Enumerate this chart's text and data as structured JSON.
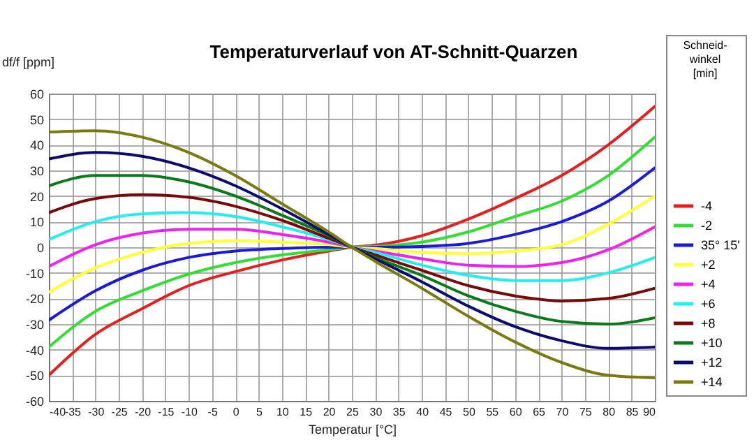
{
  "chart_data": {
    "type": "line",
    "title": "Temperaturverlauf von AT-Schnitt-Quarzen",
    "xlabel": "Temperatur [°C]",
    "ylabel": "df/f [ppm]",
    "legend_title": "Schneid-\nwinkel\n[min]",
    "x": [
      -40,
      -30,
      -20,
      -10,
      0,
      10,
      20,
      25,
      30,
      40,
      50,
      60,
      70,
      80,
      90
    ],
    "xlim": [
      -40,
      90
    ],
    "xticks": [
      -40,
      -35,
      -30,
      -25,
      -20,
      -15,
      -10,
      -5,
      0,
      5,
      10,
      15,
      20,
      25,
      30,
      35,
      40,
      45,
      50,
      55,
      60,
      65,
      70,
      75,
      80,
      85,
      90
    ],
    "ylim": [
      -60,
      60
    ],
    "yticks": [
      -60,
      -50,
      -40,
      -30,
      -20,
      -10,
      0,
      10,
      20,
      30,
      40,
      50,
      60
    ],
    "grid": true,
    "legend": "right",
    "marker": "none",
    "line_style": "solid",
    "series": [
      {
        "name": "-4",
        "color": "#e31f1f",
        "values": [
          -50,
          -34,
          -24,
          -15,
          -9.5,
          -5,
          -1.5,
          0,
          0.8,
          4.5,
          11,
          19,
          28,
          40,
          55
        ]
      },
      {
        "name": "-2",
        "color": "#33dd33",
        "values": [
          -39,
          -25,
          -17,
          -10.5,
          -6,
          -3,
          -1,
          0,
          0.3,
          2,
          6,
          12,
          18,
          28,
          43
        ]
      },
      {
        "name": "35° 15'",
        "color": "#1a1adb",
        "values": [
          -28.5,
          -17,
          -9,
          -4,
          -1.5,
          -0.5,
          0,
          0,
          0,
          0.3,
          1.5,
          5,
          10,
          18,
          31
        ]
      },
      {
        "name": "+2",
        "color": "#ffff33",
        "values": [
          -17.5,
          -8,
          -2,
          1.5,
          2.5,
          2,
          1,
          0,
          -0.5,
          -2,
          -2.5,
          -1.5,
          1,
          9,
          20
        ]
      },
      {
        "name": "+4",
        "color": "#ee22ee",
        "values": [
          -7.5,
          1,
          5.5,
          7,
          7,
          5,
          2,
          0,
          -1.5,
          -4.5,
          -7,
          -7.5,
          -6,
          -1,
          8
        ]
      },
      {
        "name": "+6",
        "color": "#22eeee",
        "values": [
          3,
          10,
          13,
          13.5,
          12,
          8,
          3,
          0,
          -2,
          -7,
          -11,
          -13,
          -13,
          -10,
          -4
        ]
      },
      {
        "name": "+8",
        "color": "#7a0a0a",
        "values": [
          13.5,
          19,
          20.5,
          19.5,
          16,
          10.5,
          3.5,
          0,
          -3,
          -9,
          -15,
          -19,
          -21,
          -20,
          -16
        ]
      },
      {
        "name": "+10",
        "color": "#0a7a1a",
        "values": [
          24,
          28,
          28,
          25.5,
          20,
          12.5,
          4.5,
          0,
          -4,
          -11,
          -19,
          -25,
          -29,
          -30,
          -27.5
        ]
      },
      {
        "name": "+12",
        "color": "#0a0a70",
        "values": [
          34.5,
          37,
          35.5,
          31,
          24,
          15,
          5,
          0,
          -4.5,
          -13.5,
          -23,
          -31,
          -36.5,
          -39.5,
          -39
        ]
      },
      {
        "name": "+14",
        "color": "#7a7a10",
        "values": [
          45,
          45.5,
          43,
          37,
          28,
          17,
          6,
          0,
          -5.5,
          -16,
          -27,
          -37,
          -45,
          -50,
          -51
        ]
      }
    ]
  }
}
